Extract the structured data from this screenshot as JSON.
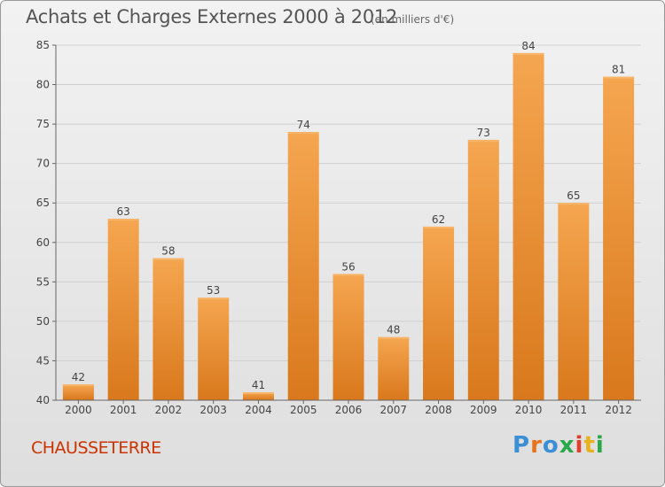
{
  "header": {
    "title": "Achats et Charges Externes 2000 à 2012",
    "unit_note": "(en milliers d'€)"
  },
  "footer": {
    "place_name": "CHAUSSETERRE",
    "brand_logo": "Proxiti"
  },
  "colors": {
    "bar_top": "#f5a650",
    "bar_bottom": "#d9781c",
    "place_name": "#cc3300",
    "grid": "#d0d0d0"
  },
  "chart_data": {
    "type": "bar",
    "categories": [
      "2000",
      "2001",
      "2002",
      "2003",
      "2004",
      "2005",
      "2006",
      "2007",
      "2008",
      "2009",
      "2010",
      "2011",
      "2012"
    ],
    "values": [
      42,
      63,
      58,
      53,
      41,
      74,
      56,
      48,
      62,
      73,
      84,
      65,
      81
    ],
    "title": "Achats et Charges Externes 2000 à 2012",
    "subtitle": "(en milliers d'€)",
    "xlabel": "",
    "ylabel": "",
    "ylim": [
      40,
      85
    ],
    "yticks": [
      40,
      45,
      50,
      55,
      60,
      65,
      70,
      75,
      80,
      85
    ],
    "grid": true,
    "legend": "none",
    "data_labels": true
  }
}
